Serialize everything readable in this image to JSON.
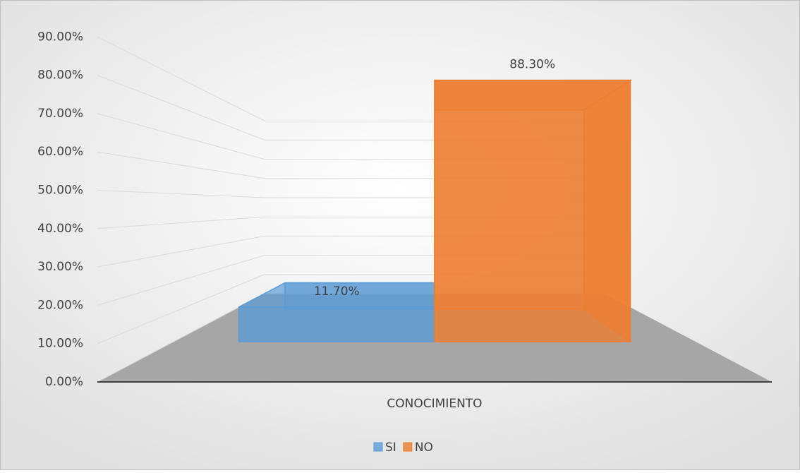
{
  "chart_data": {
    "type": "bar3d",
    "categories": [
      "CONOCIMIENTO"
    ],
    "series": [
      {
        "name": "SI",
        "color": "#5b9bd5",
        "values": [
          11.7
        ],
        "value_labels": [
          "11.70%"
        ]
      },
      {
        "name": "NO",
        "color": "#ed7d31",
        "values": [
          88.3
        ],
        "value_labels": [
          "88.30%"
        ]
      }
    ],
    "ylim": [
      0,
      90
    ],
    "yticks": [
      {
        "value": 0,
        "label": "0.00%"
      },
      {
        "value": 10,
        "label": "10.00%"
      },
      {
        "value": 20,
        "label": "20.00%"
      },
      {
        "value": 30,
        "label": "30.00%"
      },
      {
        "value": 40,
        "label": "40.00%"
      },
      {
        "value": 50,
        "label": "50.00%"
      },
      {
        "value": 60,
        "label": "60.00%"
      },
      {
        "value": 70,
        "label": "70.00%"
      },
      {
        "value": 80,
        "label": "80.00%"
      },
      {
        "value": 90,
        "label": "90.00%"
      }
    ],
    "grid": true,
    "legend": "bottom"
  }
}
